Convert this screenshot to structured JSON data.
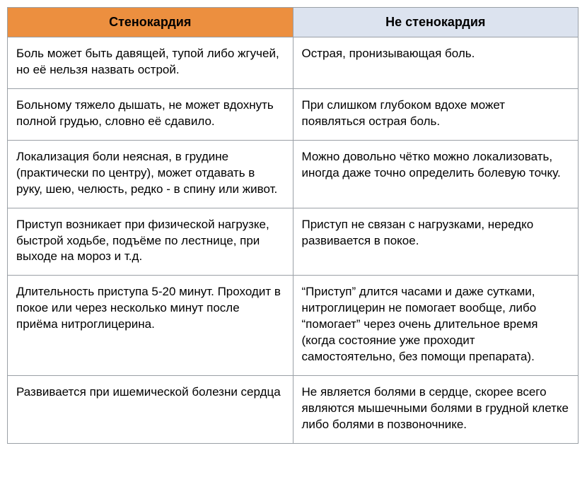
{
  "table": {
    "columns": [
      "Стенокардия",
      "Не стенокардия"
    ],
    "rows": [
      [
        "Боль может быть давящей, тупой либо жгучей, но её нельзя назвать острой.",
        "Острая, пронизывающая боль."
      ],
      [
        "Больному тяжело дышать, не может вдохнуть полной грудью, словно её сдавило.",
        "При слишком глубоком вдохе может появляться острая боль."
      ],
      [
        "Локализация боли неясная, в грудине (практически по центру), может отдавать в руку, шею, челюсть, редко - в спину или живот.",
        "Можно довольно чётко можно локализовать, иногда даже точно определить болевую точку."
      ],
      [
        "Приступ возникает при физической нагрузке, быстрой ходьбе, подъёме по лестнице, при выходе на мороз и т.д.",
        "Приступ не связан с нагрузками, нередко развивается в покое."
      ],
      [
        "Длительность приступа 5-20 минут. Проходит в покое или через несколько минут после приёма нитроглицерина.",
        "“Приступ” длится часами и даже сутками, нитроглицерин не помогает вообще, либо “помогает” через очень длительное время (когда состояние уже проходит самостоятельно, без помощи препарата)."
      ],
      [
        "Развивается при ишемической болезни сердца",
        "Не является болями в сердце, скорее всего являются мышечными болями в грудной клетке либо болями в позвоночнике."
      ]
    ],
    "header_bg_a": "#ec8f3f",
    "header_bg_b": "#dce3ef",
    "border_color": "#9aa0a6",
    "font_size_body": 17,
    "font_size_header": 18,
    "col_widths_percent": [
      50,
      50
    ]
  }
}
